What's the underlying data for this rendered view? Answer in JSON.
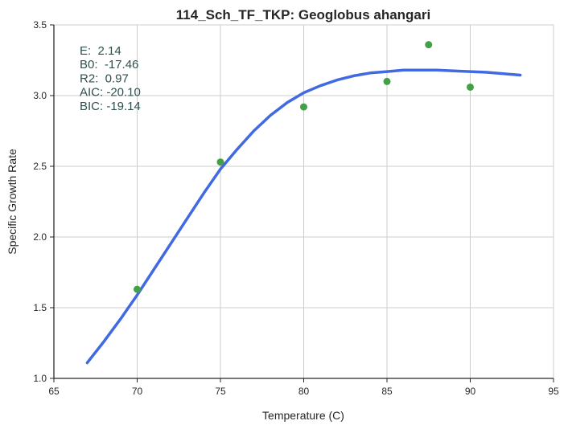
{
  "chart_data": {
    "type": "scatter",
    "title": "114_Sch_TF_TKP: Geoglobus ahangari",
    "xlabel": "Temperature (C)",
    "ylabel": "Specific Growth Rate",
    "xlim": [
      65,
      95
    ],
    "ylim": [
      1.0,
      3.5
    ],
    "xticks": [
      "65",
      "70",
      "75",
      "80",
      "85",
      "90",
      "95"
    ],
    "yticks": [
      "1.0",
      "1.5",
      "2.0",
      "2.5",
      "3.0",
      "3.5"
    ],
    "grid": true,
    "points": {
      "x": [
        70,
        75,
        80,
        85,
        87.5,
        90
      ],
      "y": [
        1.63,
        2.53,
        2.92,
        3.1,
        3.36,
        3.06
      ],
      "color": "#43a047"
    },
    "fit_curve": {
      "x": [
        67,
        68,
        69,
        70,
        71,
        72,
        73,
        74,
        75,
        76,
        77,
        78,
        79,
        80,
        81,
        82,
        83,
        84,
        85,
        86,
        87,
        88,
        89,
        90,
        91,
        92,
        93
      ],
      "y": [
        1.11,
        1.26,
        1.42,
        1.59,
        1.77,
        1.95,
        2.13,
        2.31,
        2.48,
        2.62,
        2.75,
        2.86,
        2.95,
        3.02,
        3.07,
        3.11,
        3.14,
        3.16,
        3.17,
        3.18,
        3.18,
        3.18,
        3.175,
        3.17,
        3.165,
        3.155,
        3.145
      ],
      "color": "#4169e1"
    },
    "stats": [
      "E:  2.14",
      "B0:  -17.46",
      "R2:  0.97",
      "AIC: -20.10",
      "BIC: -19.14"
    ]
  }
}
